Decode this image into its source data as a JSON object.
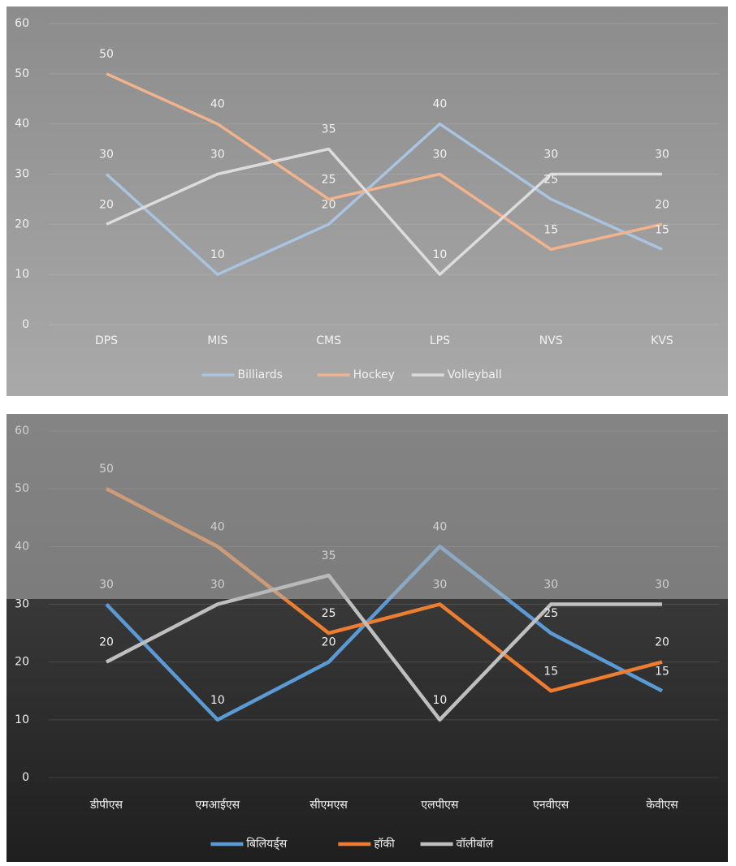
{
  "chart_data": [
    {
      "type": "line",
      "categories": [
        "DPS",
        "MIS",
        "CMS",
        "LPS",
        "NVS",
        "KVS"
      ],
      "series": [
        {
          "name": "Billiards",
          "color": "#a9c4e0",
          "values": [
            30,
            10,
            20,
            40,
            25,
            15
          ]
        },
        {
          "name": "Hockey",
          "color": "#f2b38c",
          "values": [
            50,
            40,
            25,
            30,
            15,
            20
          ]
        },
        {
          "name": "Volleyball",
          "color": "#dcdcdc",
          "values": [
            20,
            30,
            35,
            10,
            30,
            30
          ]
        }
      ],
      "ylim": [
        0,
        60
      ],
      "yticks": [
        0,
        10,
        20,
        30,
        40,
        50,
        60
      ],
      "grid": true,
      "legend": "bottom"
    },
    {
      "type": "line",
      "categories": [
        "डीपीएस",
        "एमआईएस",
        "सीएमएस",
        "एलपीएस",
        "एनवीएस",
        "केवीएस"
      ],
      "series": [
        {
          "name": "बिलियर्ड्स",
          "color": "#5b9bd5",
          "values": [
            30,
            10,
            20,
            40,
            25,
            15
          ]
        },
        {
          "name": "हॉकी",
          "color": "#ed7d31",
          "values": [
            50,
            40,
            25,
            30,
            15,
            20
          ]
        },
        {
          "name": "वॉलीबॉल",
          "color": "#bfbfbf",
          "values": [
            20,
            30,
            35,
            10,
            30,
            30
          ]
        }
      ],
      "ylim": [
        0,
        60
      ],
      "yticks": [
        0,
        10,
        20,
        30,
        40,
        50,
        60
      ],
      "grid": true,
      "legend": "bottom"
    }
  ]
}
